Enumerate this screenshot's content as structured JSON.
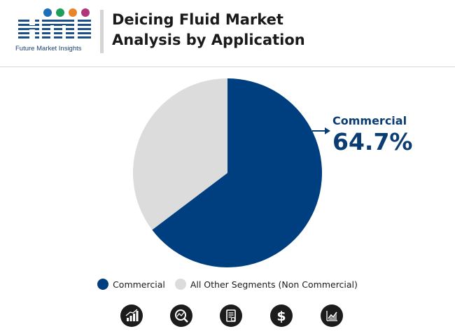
{
  "brand": {
    "logo_text": "fmi",
    "tagline": "Future Market Insights"
  },
  "title": {
    "line1": "Deicing Fluid Market",
    "line2": "Analysis by Application"
  },
  "colors": {
    "commercial": "#003f7f",
    "other": "#dcdcdc",
    "accent_text": "#0b3d73",
    "icon_bg": "#1c1c1c"
  },
  "chart_data": {
    "type": "pie",
    "slices": [
      {
        "name": "Commercial",
        "value": 64.7
      },
      {
        "name": "All Other Segments (Non Commercial)",
        "value": 35.3
      }
    ],
    "start_angle": "12 o'clock, clockwise",
    "legend_placement": "bottom"
  },
  "callout": {
    "label": "Commercial",
    "value": "64.7%"
  },
  "legend": [
    {
      "label": "Commercial"
    },
    {
      "label": "All Other Segments (Non Commercial)"
    }
  ],
  "icons": [
    {
      "name": "bar-chart-icon"
    },
    {
      "name": "search-analysis-icon"
    },
    {
      "name": "document-icon"
    },
    {
      "name": "dollar-icon"
    },
    {
      "name": "trend-chart-icon"
    }
  ]
}
